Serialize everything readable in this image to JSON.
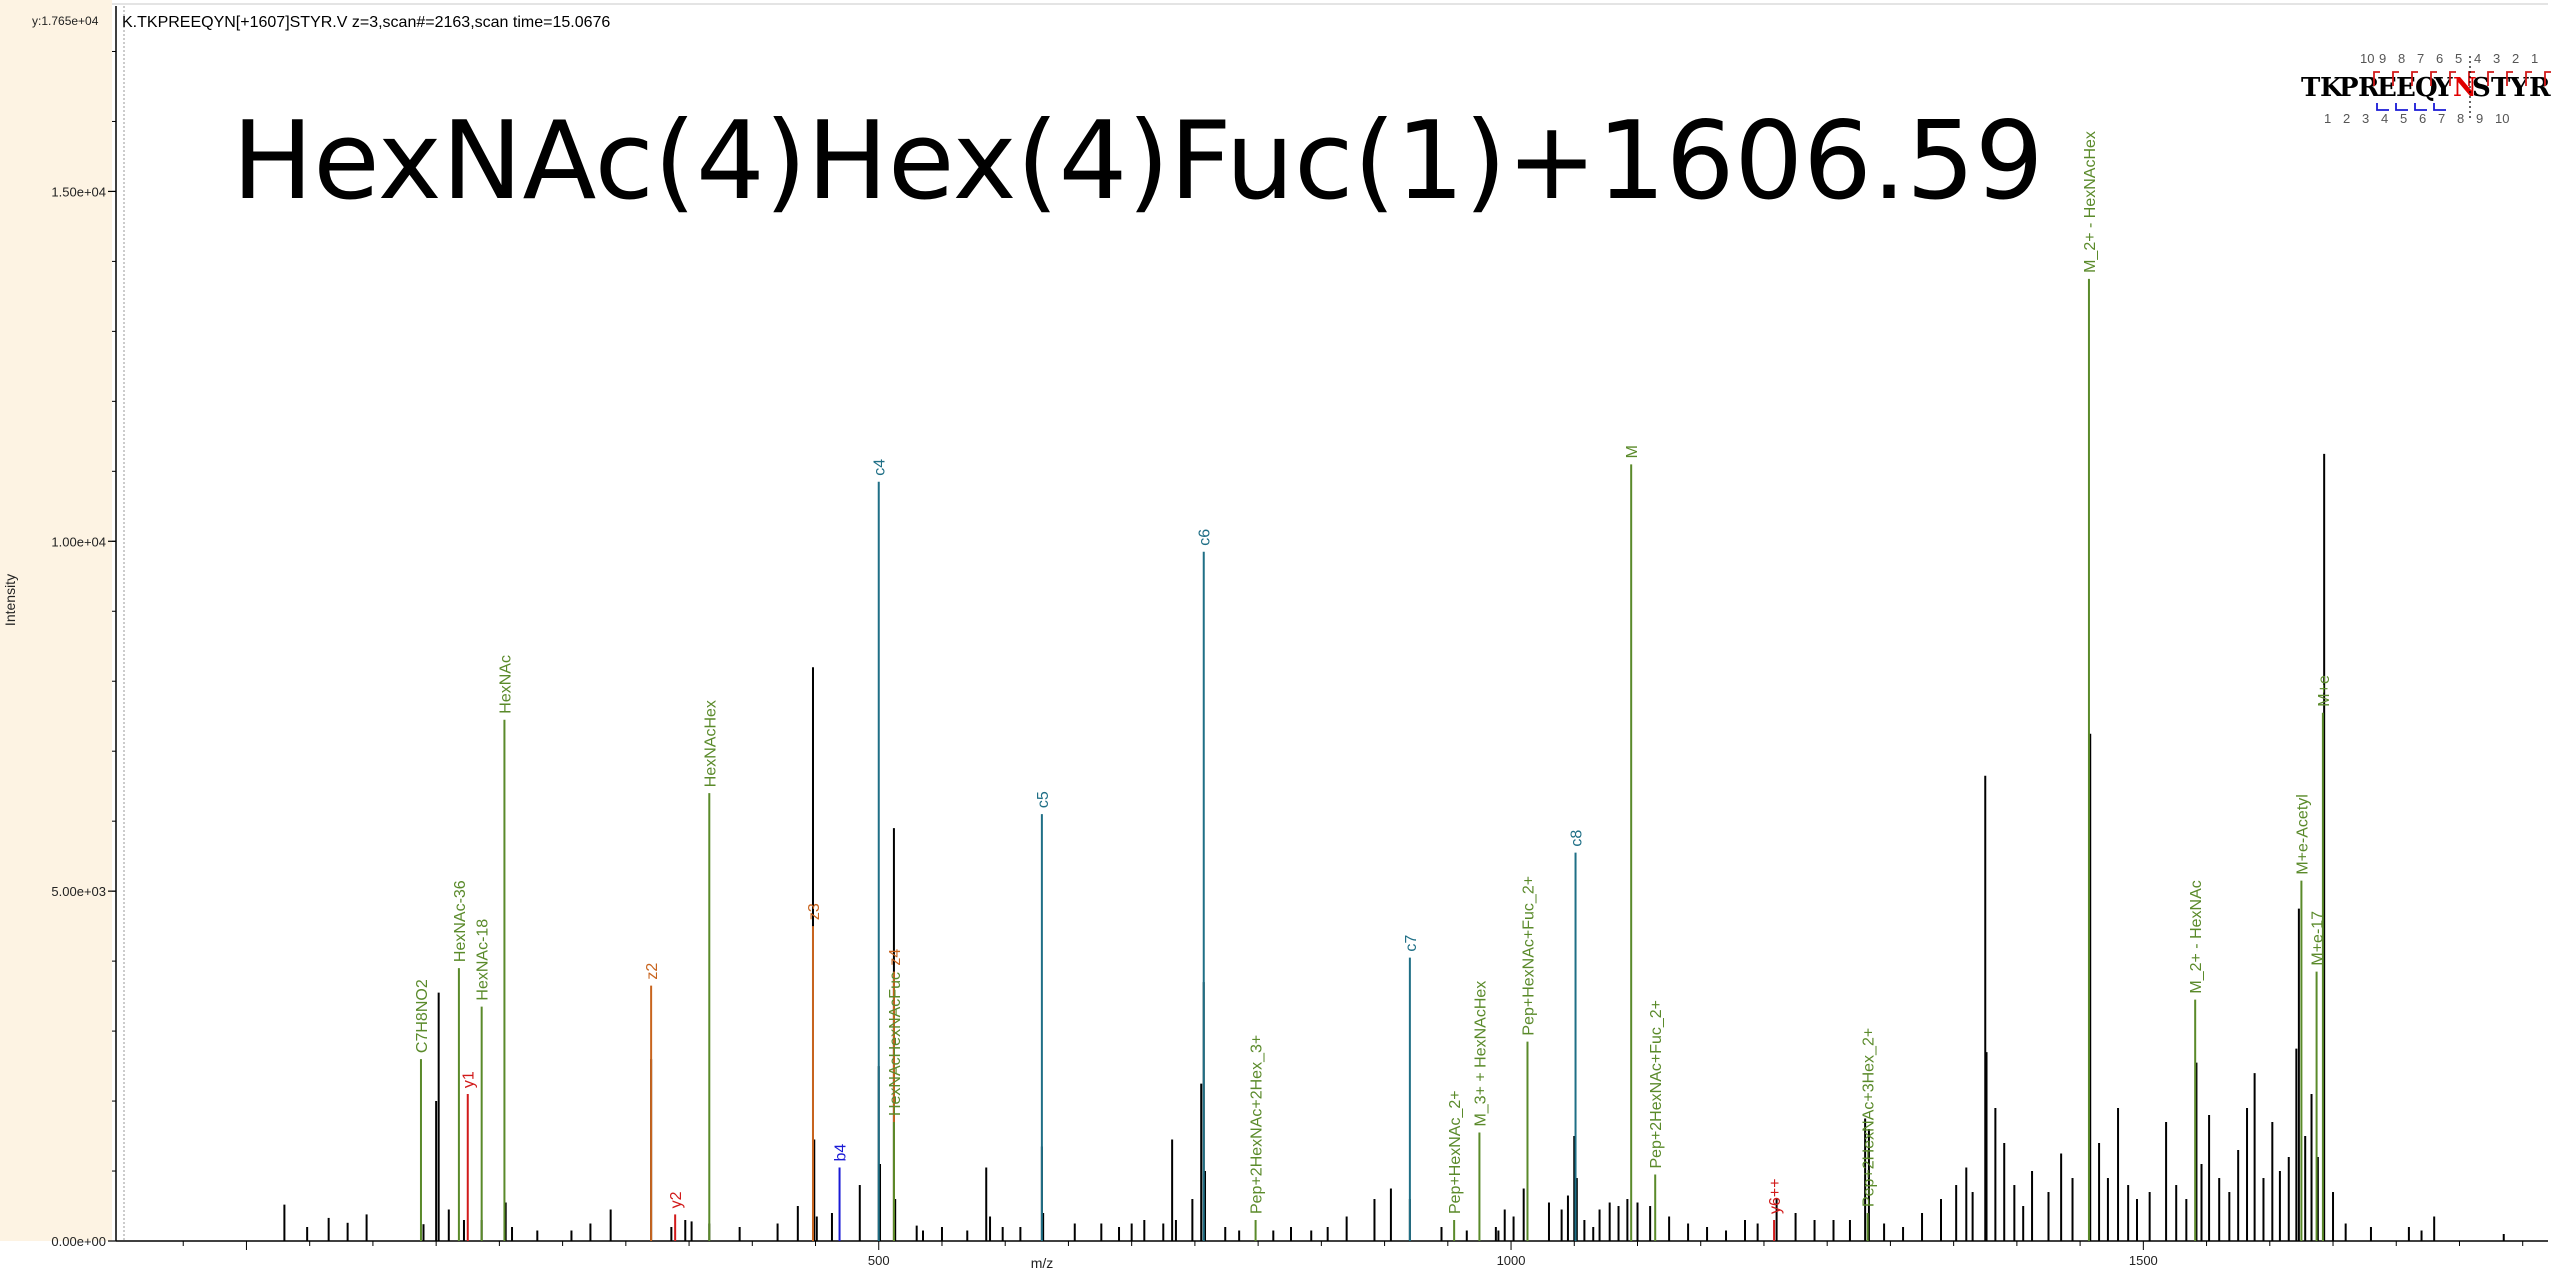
{
  "header": {
    "y_max_label": "y:1.765e+04",
    "scan_info": "K.TKPREEQYN[+1607]STYR.V z=3,scan#=2163,scan time=15.0676"
  },
  "annotation_title": "HexNAc(4)Hex(4)Fuc(1)+1606.59",
  "sequence_map": {
    "residues": [
      "T",
      "K",
      "P",
      "R",
      "E",
      "E",
      "Q",
      "Y",
      "N",
      "S",
      "T",
      "Y",
      "R"
    ],
    "highlight_index": 8,
    "top_numbers": [
      "10",
      "9",
      "8",
      "7",
      "6",
      "5",
      "4",
      "3",
      "2",
      "1"
    ],
    "bottom_numbers": [
      "1",
      "2",
      "3",
      "4",
      "5",
      "6",
      "7",
      "8",
      "9",
      "10"
    ]
  },
  "colors": {
    "y_ion": "#d11a1a",
    "b_ion": "#1a1ad6",
    "c_ion": "#1f6f86",
    "z_ion": "#c8641e",
    "glyco": "#5a8a2a",
    "unannotated": "#000000",
    "left_panel": "#fdf3e3",
    "highlight_residue": "#e00000"
  },
  "chart_data": {
    "type": "bar",
    "xlabel": "m/z",
    "ylabel": "Intensity",
    "xlim": [
      -100,
      1820
    ],
    "ylim": [
      0,
      17650
    ],
    "xticks": [
      500,
      1000,
      1500
    ],
    "yticks": [
      {
        "value": 0,
        "label": "0.00e+00"
      },
      {
        "value": 5000,
        "label": "5.00e+03"
      },
      {
        "value": 10000,
        "label": "1.00e+04"
      },
      {
        "value": 15000,
        "label": "1.50e+04"
      }
    ],
    "annotated_peaks": [
      {
        "label": "C7H8NO2",
        "mz": 138,
        "intensity": 2600,
        "type": "glyco"
      },
      {
        "label": "HexNAc-36",
        "mz": 168,
        "intensity": 3900,
        "type": "glyco"
      },
      {
        "label": "y1",
        "mz": 175,
        "intensity": 2100,
        "type": "y"
      },
      {
        "label": "HexNAc-18",
        "mz": 186,
        "intensity": 3350,
        "type": "glyco"
      },
      {
        "label": "HexNAc",
        "mz": 204,
        "intensity": 7450,
        "type": "glyco"
      },
      {
        "label": "z2",
        "mz": 320,
        "intensity": 3650,
        "type": "z"
      },
      {
        "label": "y2",
        "mz": 339,
        "intensity": 380,
        "type": "y"
      },
      {
        "label": "HexNAcHex",
        "mz": 366,
        "intensity": 6400,
        "type": "glyco"
      },
      {
        "label": "z3",
        "mz": 448,
        "intensity": 4500,
        "type": "z"
      },
      {
        "label": "b4",
        "mz": 469,
        "intensity": 1050,
        "type": "b"
      },
      {
        "label": "c4",
        "mz": 500,
        "intensity": 10850,
        "type": "c"
      },
      {
        "label": "z4",
        "mz": 512,
        "intensity": 3850,
        "type": "z"
      },
      {
        "label": "HexNAcHexNAcFuc",
        "mz": 512,
        "intensity": 1700,
        "type": "glyco"
      },
      {
        "label": "c5",
        "mz": 629,
        "intensity": 6100,
        "type": "c"
      },
      {
        "label": "c6",
        "mz": 757,
        "intensity": 9850,
        "type": "c"
      },
      {
        "label": "Pep+2HexNAc+2Hex_3+",
        "mz": 798,
        "intensity": 300,
        "type": "glyco"
      },
      {
        "label": "c7",
        "mz": 920,
        "intensity": 4050,
        "type": "c"
      },
      {
        "label": "Pep+HexNAc_2+",
        "mz": 955,
        "intensity": 300,
        "type": "glyco"
      },
      {
        "label": "M_3+ + HexNAcHex",
        "mz": 975,
        "intensity": 1550,
        "type": "glyco"
      },
      {
        "label": "Pep+HexNAc+Fuc_2+",
        "mz": 1013,
        "intensity": 2850,
        "type": "glyco"
      },
      {
        "label": "c8",
        "mz": 1051,
        "intensity": 5550,
        "type": "c"
      },
      {
        "label": "M",
        "mz": 1095,
        "intensity": 11100,
        "type": "glyco"
      },
      {
        "label": "Pep+2HexNAc+Fuc_2+",
        "mz": 1114,
        "intensity": 950,
        "type": "glyco"
      },
      {
        "label": "y6++",
        "mz": 1208,
        "intensity": 300,
        "type": "y"
      },
      {
        "label": "Pep+2HexNAc+3Hex_2+",
        "mz": 1282,
        "intensity": 400,
        "type": "glyco"
      },
      {
        "label": "M_2+ - HexNAcHex",
        "mz": 1457,
        "intensity": 13750,
        "type": "glyco"
      },
      {
        "label": "M_2+ - HexNAc",
        "mz": 1541,
        "intensity": 3450,
        "type": "glyco"
      },
      {
        "label": "M+e-Acetyl",
        "mz": 1625,
        "intensity": 5150,
        "type": "glyco"
      },
      {
        "label": "M+e-17",
        "mz": 1637,
        "intensity": 3850,
        "type": "glyco"
      },
      {
        "label": "M+e",
        "mz": 1642,
        "intensity": 7550,
        "type": "glyco"
      }
    ],
    "unannotated_peaks": [
      {
        "mz": 30,
        "intensity": 520
      },
      {
        "mz": 48,
        "intensity": 200
      },
      {
        "mz": 65,
        "intensity": 330
      },
      {
        "mz": 80,
        "intensity": 260
      },
      {
        "mz": 95,
        "intensity": 380
      },
      {
        "mz": 140,
        "intensity": 240
      },
      {
        "mz": 150,
        "intensity": 2000
      },
      {
        "mz": 152,
        "intensity": 3550
      },
      {
        "mz": 160,
        "intensity": 450
      },
      {
        "mz": 172,
        "intensity": 300
      },
      {
        "mz": 186,
        "intensity": 300
      },
      {
        "mz": 205,
        "intensity": 550
      },
      {
        "mz": 210,
        "intensity": 200
      },
      {
        "mz": 230,
        "intensity": 150
      },
      {
        "mz": 257,
        "intensity": 150
      },
      {
        "mz": 272,
        "intensity": 250
      },
      {
        "mz": 288,
        "intensity": 450
      },
      {
        "mz": 320,
        "intensity": 2600
      },
      {
        "mz": 336,
        "intensity": 200
      },
      {
        "mz": 347,
        "intensity": 300
      },
      {
        "mz": 352,
        "intensity": 280
      },
      {
        "mz": 366,
        "intensity": 250
      },
      {
        "mz": 390,
        "intensity": 200
      },
      {
        "mz": 420,
        "intensity": 250
      },
      {
        "mz": 436,
        "intensity": 500
      },
      {
        "mz": 448,
        "intensity": 8200
      },
      {
        "mz": 449,
        "intensity": 1450
      },
      {
        "mz": 451,
        "intensity": 350
      },
      {
        "mz": 463,
        "intensity": 400
      },
      {
        "mz": 485,
        "intensity": 800
      },
      {
        "mz": 500,
        "intensity": 2500
      },
      {
        "mz": 501,
        "intensity": 1100
      },
      {
        "mz": 512,
        "intensity": 5900
      },
      {
        "mz": 513,
        "intensity": 600
      },
      {
        "mz": 530,
        "intensity": 220
      },
      {
        "mz": 535,
        "intensity": 150
      },
      {
        "mz": 550,
        "intensity": 200
      },
      {
        "mz": 570,
        "intensity": 150
      },
      {
        "mz": 585,
        "intensity": 1050
      },
      {
        "mz": 588,
        "intensity": 350
      },
      {
        "mz": 598,
        "intensity": 200
      },
      {
        "mz": 612,
        "intensity": 200
      },
      {
        "mz": 629,
        "intensity": 1350
      },
      {
        "mz": 630,
        "intensity": 400
      },
      {
        "mz": 655,
        "intensity": 250
      },
      {
        "mz": 676,
        "intensity": 250
      },
      {
        "mz": 690,
        "intensity": 200
      },
      {
        "mz": 700,
        "intensity": 250
      },
      {
        "mz": 710,
        "intensity": 300
      },
      {
        "mz": 725,
        "intensity": 250
      },
      {
        "mz": 732,
        "intensity": 1450
      },
      {
        "mz": 735,
        "intensity": 300
      },
      {
        "mz": 748,
        "intensity": 600
      },
      {
        "mz": 755,
        "intensity": 2250
      },
      {
        "mz": 757,
        "intensity": 3700
      },
      {
        "mz": 758,
        "intensity": 1000
      },
      {
        "mz": 774,
        "intensity": 200
      },
      {
        "mz": 785,
        "intensity": 150
      },
      {
        "mz": 812,
        "intensity": 150
      },
      {
        "mz": 826,
        "intensity": 200
      },
      {
        "mz": 842,
        "intensity": 150
      },
      {
        "mz": 855,
        "intensity": 200
      },
      {
        "mz": 870,
        "intensity": 350
      },
      {
        "mz": 892,
        "intensity": 600
      },
      {
        "mz": 905,
        "intensity": 750
      },
      {
        "mz": 920,
        "intensity": 600
      },
      {
        "mz": 945,
        "intensity": 200
      },
      {
        "mz": 965,
        "intensity": 150
      },
      {
        "mz": 988,
        "intensity": 200
      },
      {
        "mz": 990,
        "intensity": 150
      },
      {
        "mz": 995,
        "intensity": 450
      },
      {
        "mz": 1002,
        "intensity": 350
      },
      {
        "mz": 1010,
        "intensity": 750
      },
      {
        "mz": 1030,
        "intensity": 550
      },
      {
        "mz": 1040,
        "intensity": 450
      },
      {
        "mz": 1045,
        "intensity": 650
      },
      {
        "mz": 1050,
        "intensity": 1500
      },
      {
        "mz": 1052,
        "intensity": 900
      },
      {
        "mz": 1058,
        "intensity": 300
      },
      {
        "mz": 1065,
        "intensity": 200
      },
      {
        "mz": 1070,
        "intensity": 450
      },
      {
        "mz": 1078,
        "intensity": 550
      },
      {
        "mz": 1085,
        "intensity": 500
      },
      {
        "mz": 1092,
        "intensity": 600
      },
      {
        "mz": 1100,
        "intensity": 550
      },
      {
        "mz": 1110,
        "intensity": 500
      },
      {
        "mz": 1125,
        "intensity": 350
      },
      {
        "mz": 1140,
        "intensity": 250
      },
      {
        "mz": 1155,
        "intensity": 200
      },
      {
        "mz": 1170,
        "intensity": 150
      },
      {
        "mz": 1185,
        "intensity": 300
      },
      {
        "mz": 1195,
        "intensity": 250
      },
      {
        "mz": 1210,
        "intensity": 600
      },
      {
        "mz": 1225,
        "intensity": 400
      },
      {
        "mz": 1240,
        "intensity": 300
      },
      {
        "mz": 1255,
        "intensity": 300
      },
      {
        "mz": 1268,
        "intensity": 300
      },
      {
        "mz": 1280,
        "intensity": 1750
      },
      {
        "mz": 1283,
        "intensity": 1600
      },
      {
        "mz": 1295,
        "intensity": 250
      },
      {
        "mz": 1310,
        "intensity": 200
      },
      {
        "mz": 1325,
        "intensity": 400
      },
      {
        "mz": 1340,
        "intensity": 600
      },
      {
        "mz": 1352,
        "intensity": 800
      },
      {
        "mz": 1360,
        "intensity": 1050
      },
      {
        "mz": 1365,
        "intensity": 700
      },
      {
        "mz": 1375,
        "intensity": 6650
      },
      {
        "mz": 1376,
        "intensity": 2700
      },
      {
        "mz": 1383,
        "intensity": 1900
      },
      {
        "mz": 1390,
        "intensity": 1400
      },
      {
        "mz": 1398,
        "intensity": 800
      },
      {
        "mz": 1405,
        "intensity": 500
      },
      {
        "mz": 1412,
        "intensity": 1000
      },
      {
        "mz": 1425,
        "intensity": 700
      },
      {
        "mz": 1435,
        "intensity": 1250
      },
      {
        "mz": 1444,
        "intensity": 900
      },
      {
        "mz": 1458,
        "intensity": 7250
      },
      {
        "mz": 1465,
        "intensity": 1400
      },
      {
        "mz": 1472,
        "intensity": 900
      },
      {
        "mz": 1480,
        "intensity": 1900
      },
      {
        "mz": 1488,
        "intensity": 800
      },
      {
        "mz": 1495,
        "intensity": 600
      },
      {
        "mz": 1505,
        "intensity": 700
      },
      {
        "mz": 1518,
        "intensity": 1700
      },
      {
        "mz": 1526,
        "intensity": 800
      },
      {
        "mz": 1534,
        "intensity": 600
      },
      {
        "mz": 1542,
        "intensity": 2550
      },
      {
        "mz": 1546,
        "intensity": 1100
      },
      {
        "mz": 1552,
        "intensity": 1800
      },
      {
        "mz": 1560,
        "intensity": 900
      },
      {
        "mz": 1568,
        "intensity": 700
      },
      {
        "mz": 1575,
        "intensity": 1300
      },
      {
        "mz": 1582,
        "intensity": 1900
      },
      {
        "mz": 1588,
        "intensity": 2400
      },
      {
        "mz": 1595,
        "intensity": 900
      },
      {
        "mz": 1602,
        "intensity": 1700
      },
      {
        "mz": 1608,
        "intensity": 1000
      },
      {
        "mz": 1615,
        "intensity": 1200
      },
      {
        "mz": 1621,
        "intensity": 2750
      },
      {
        "mz": 1623,
        "intensity": 4750
      },
      {
        "mz": 1628,
        "intensity": 1500
      },
      {
        "mz": 1633,
        "intensity": 2100
      },
      {
        "mz": 1638,
        "intensity": 1200
      },
      {
        "mz": 1643,
        "intensity": 11250
      },
      {
        "mz": 1650,
        "intensity": 700
      },
      {
        "mz": 1660,
        "intensity": 250
      },
      {
        "mz": 1680,
        "intensity": 200
      },
      {
        "mz": 1710,
        "intensity": 200
      },
      {
        "mz": 1720,
        "intensity": 150
      },
      {
        "mz": 1730,
        "intensity": 350
      },
      {
        "mz": 1785,
        "intensity": 100
      }
    ]
  }
}
